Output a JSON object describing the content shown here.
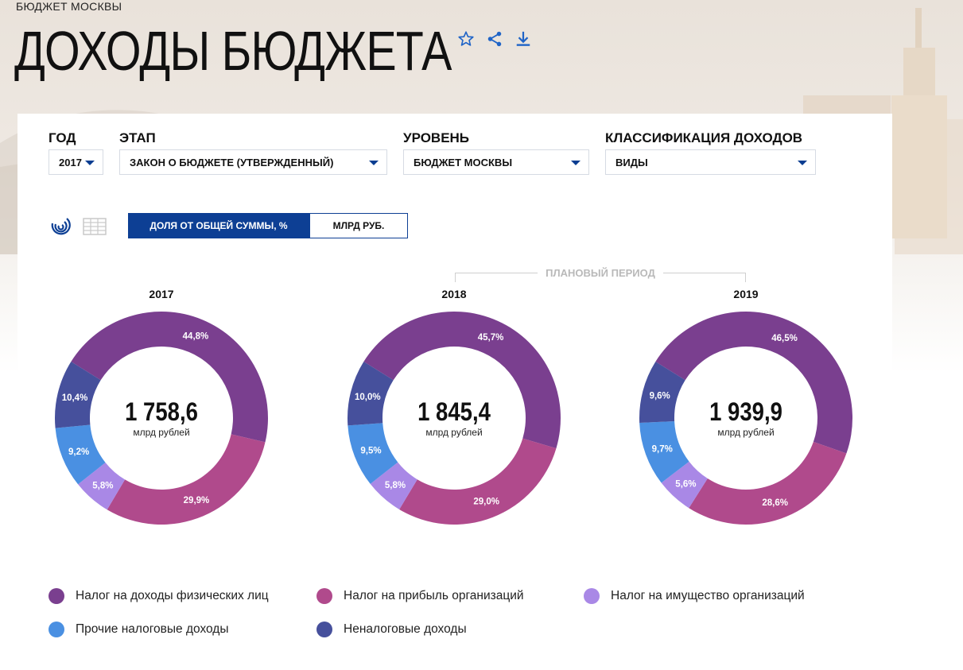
{
  "header": {
    "breadcrumb": "БЮДЖЕТ МОСКВЫ",
    "title": "ДОХОДЫ БЮДЖЕТА"
  },
  "toolbar_icons": [
    "star-icon",
    "share-icon",
    "download-icon"
  ],
  "filters": {
    "year": {
      "label": "ГОД",
      "value": "2017"
    },
    "stage": {
      "label": "ЭТАП",
      "value": "ЗАКОН О БЮДЖЕТЕ (УТВЕРЖДЕННЫЙ)"
    },
    "level": {
      "label": "УРОВЕНЬ",
      "value": "БЮДЖЕТ МОСКВЫ"
    },
    "classification": {
      "label": "КЛАССИФИКАЦИЯ ДОХОДОВ",
      "value": "ВИДЫ"
    }
  },
  "view": {
    "icons": [
      "donut-view-icon",
      "table-view-icon"
    ],
    "toggle": {
      "share": "ДОЛЯ ОТ ОБЩЕЙ СУММЫ, %",
      "abs": "МЛРД РУБ."
    },
    "planned_period": "ПЛАНОВЫЙ ПЕРИОД"
  },
  "colors": {
    "ndfl": "#7a3f8f",
    "profit": "#b04a8c",
    "property": "#a988e6",
    "other_tax": "#4a90e2",
    "non_tax": "#46509c"
  },
  "chart_data": [
    {
      "type": "pie",
      "title": "2017",
      "total": "1 758,6",
      "unit": "млрд рублей",
      "series": [
        {
          "name": "Налог на доходы физических лиц",
          "value": 44.8,
          "label": "44,8%",
          "color_key": "ndfl"
        },
        {
          "name": "Налог на прибыль организаций",
          "value": 29.9,
          "label": "29,9%",
          "color_key": "profit"
        },
        {
          "name": "Налог на имущество организаций",
          "value": 5.8,
          "label": "5,8%",
          "color_key": "property"
        },
        {
          "name": "Прочие налоговые доходы",
          "value": 9.2,
          "label": "9,2%",
          "color_key": "other_tax"
        },
        {
          "name": "Неналоговые доходы",
          "value": 10.4,
          "label": "10,4%",
          "color_key": "non_tax"
        }
      ]
    },
    {
      "type": "pie",
      "title": "2018",
      "total": "1 845,4",
      "unit": "млрд рублей",
      "series": [
        {
          "name": "Налог на доходы физических лиц",
          "value": 45.7,
          "label": "45,7%",
          "color_key": "ndfl"
        },
        {
          "name": "Налог на прибыль организаций",
          "value": 29.0,
          "label": "29,0%",
          "color_key": "profit"
        },
        {
          "name": "Налог на имущество организаций",
          "value": 5.8,
          "label": "5,8%",
          "color_key": "property"
        },
        {
          "name": "Прочие налоговые доходы",
          "value": 9.5,
          "label": "9,5%",
          "color_key": "other_tax"
        },
        {
          "name": "Неналоговые доходы",
          "value": 10.0,
          "label": "10,0%",
          "color_key": "non_tax"
        }
      ]
    },
    {
      "type": "pie",
      "title": "2019",
      "total": "1 939,9",
      "unit": "млрд рублей",
      "series": [
        {
          "name": "Налог на доходы физических лиц",
          "value": 46.5,
          "label": "46,5%",
          "color_key": "ndfl"
        },
        {
          "name": "Налог на прибыль организаций",
          "value": 28.6,
          "label": "28,6%",
          "color_key": "profit"
        },
        {
          "name": "Налог на имущество организаций",
          "value": 5.6,
          "label": "5,6%",
          "color_key": "property"
        },
        {
          "name": "Прочие налоговые доходы",
          "value": 9.7,
          "label": "9,7%",
          "color_key": "other_tax"
        },
        {
          "name": "Неналоговые доходы",
          "value": 9.6,
          "label": "9,6%",
          "color_key": "non_tax"
        }
      ]
    }
  ],
  "legend": [
    {
      "label": "Налог на доходы физических лиц",
      "color_key": "ndfl"
    },
    {
      "label": "Налог на прибыль организаций",
      "color_key": "profit"
    },
    {
      "label": "Налог на имущество организаций",
      "color_key": "property"
    },
    {
      "label": "Прочие налоговые доходы",
      "color_key": "other_tax"
    },
    {
      "label": "Неналоговые доходы",
      "color_key": "non_tax"
    }
  ]
}
